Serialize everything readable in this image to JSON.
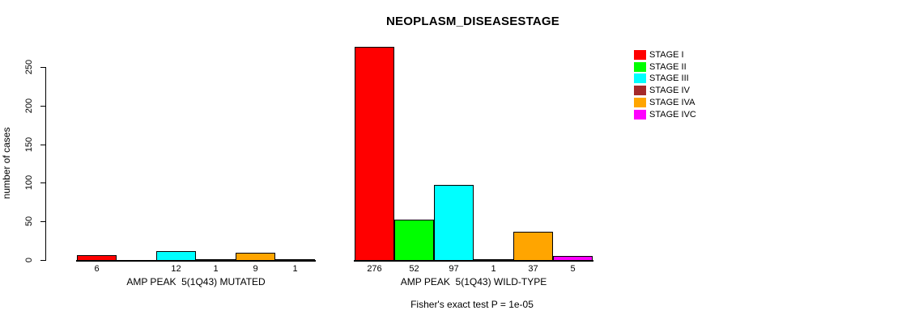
{
  "chart_data": {
    "type": "bar",
    "title": "NEOPLASM_DISEASESTAGE",
    "ylabel": "number of cases",
    "xlabel": "",
    "ylim": [
      0,
      280
    ],
    "yticks": [
      0,
      50,
      100,
      150,
      200,
      250
    ],
    "grid": false,
    "legend_position": "top-right",
    "legend": [
      {
        "label": "STAGE I",
        "color": "#FF0000"
      },
      {
        "label": "STAGE II",
        "color": "#00FF00"
      },
      {
        "label": "STAGE III",
        "color": "#00FFFF"
      },
      {
        "label": "STAGE IV",
        "color": "#A52A2A"
      },
      {
        "label": "STAGE IVA",
        "color": "#FFA500"
      },
      {
        "label": "STAGE IVC",
        "color": "#FF00FF"
      }
    ],
    "groups": [
      {
        "label": "AMP PEAK  5(1Q43) MUTATED",
        "values": [
          6,
          0,
          12,
          1,
          9,
          1
        ],
        "value_labels": [
          "6",
          "",
          "12",
          "1",
          "9",
          "1"
        ]
      },
      {
        "label": "AMP PEAK  5(1Q43) WILD-TYPE",
        "values": [
          276,
          52,
          97,
          1,
          37,
          5
        ],
        "value_labels": [
          "276",
          "52",
          "97",
          "1",
          "37",
          "5"
        ]
      }
    ],
    "annotation": "Fisher's exact test P = 1e-05",
    "axis_color": "#000000",
    "background_color": "#FFFFFF"
  }
}
